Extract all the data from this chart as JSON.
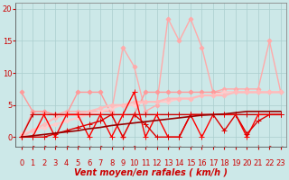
{
  "background_color": "#cce8e8",
  "grid_color": "#aacece",
  "xlabel": "Vent moyen/en rafales ( km/h )",
  "xlim": [
    -0.5,
    23.5
  ],
  "ylim": [
    -1.5,
    21
  ],
  "yticks": [
    0,
    5,
    10,
    15,
    20
  ],
  "xticks": [
    0,
    1,
    2,
    3,
    4,
    5,
    6,
    7,
    8,
    9,
    10,
    11,
    12,
    13,
    14,
    15,
    16,
    17,
    18,
    19,
    20,
    21,
    22,
    23
  ],
  "series": [
    {
      "y": [
        0.0,
        4.0,
        4.0,
        3.5,
        4.0,
        4.0,
        4.0,
        4.0,
        4.0,
        14.0,
        11.0,
        4.0,
        5.0,
        18.5,
        15.0,
        18.5,
        14.0,
        7.0,
        7.5,
        7.5,
        7.5,
        7.5,
        15.0,
        7.0
      ],
      "color": "#ffaaaa",
      "lw": 1.0,
      "marker": "D",
      "ms": 2.5
    },
    {
      "y": [
        7.0,
        4.0,
        4.0,
        3.5,
        3.5,
        7.0,
        7.0,
        7.0,
        3.5,
        0.0,
        3.5,
        7.0,
        7.0,
        7.0,
        7.0,
        7.0,
        7.0,
        7.0,
        7.0,
        7.0,
        7.0,
        7.0,
        7.0,
        7.0
      ],
      "color": "#ff9999",
      "lw": 1.0,
      "marker": "D",
      "ms": 2.5
    },
    {
      "y": [
        0.5,
        1.0,
        1.5,
        2.0,
        2.5,
        3.0,
        3.5,
        4.0,
        4.5,
        5.0,
        5.0,
        5.5,
        5.5,
        5.5,
        6.0,
        6.0,
        6.5,
        6.5,
        7.0,
        7.0,
        7.0,
        7.0,
        7.0,
        7.0
      ],
      "color": "#ffcccc",
      "lw": 1.5,
      "marker": "D",
      "ms": 2.5
    },
    {
      "y": [
        0.0,
        1.0,
        2.0,
        3.0,
        3.5,
        3.5,
        4.0,
        4.5,
        5.0,
        5.0,
        5.5,
        5.5,
        5.5,
        6.0,
        6.0,
        6.0,
        6.5,
        6.5,
        6.5,
        7.0,
        7.0,
        7.0,
        7.0,
        7.0
      ],
      "color": "#ffbbbb",
      "lw": 1.5,
      "marker": "D",
      "ms": 2.5
    },
    {
      "y": [
        0.0,
        3.5,
        3.5,
        3.5,
        3.5,
        3.5,
        3.5,
        3.5,
        3.5,
        3.5,
        3.5,
        3.5,
        3.5,
        3.5,
        3.5,
        3.5,
        3.5,
        3.5,
        3.5,
        3.5,
        3.5,
        3.5,
        3.5,
        3.5
      ],
      "color": "#cc0000",
      "lw": 1.0,
      "marker": "+",
      "ms": 4
    },
    {
      "y": [
        0.0,
        0.0,
        3.5,
        0.0,
        3.5,
        3.5,
        0.0,
        3.5,
        0.0,
        3.5,
        7.0,
        0.0,
        3.5,
        0.0,
        0.0,
        3.5,
        0.0,
        3.5,
        3.5,
        3.5,
        0.0,
        3.5,
        3.5,
        3.5
      ],
      "color": "#ff0000",
      "lw": 1.0,
      "marker": "+",
      "ms": 4
    },
    {
      "y": [
        0.0,
        0.0,
        0.0,
        0.5,
        1.0,
        1.5,
        2.0,
        2.5,
        3.5,
        0.0,
        3.5,
        2.0,
        0.0,
        0.0,
        0.0,
        3.5,
        3.5,
        3.5,
        1.0,
        3.5,
        0.5,
        2.5,
        3.5,
        3.5
      ],
      "color": "#dd0000",
      "lw": 1.0,
      "marker": "+",
      "ms": 4
    },
    {
      "y": [
        0.0,
        0.2,
        0.4,
        0.6,
        0.8,
        1.0,
        1.3,
        1.5,
        1.8,
        2.0,
        2.2,
        2.4,
        2.6,
        2.8,
        3.0,
        3.2,
        3.4,
        3.5,
        3.6,
        3.8,
        4.0,
        4.0,
        4.0,
        4.0
      ],
      "color": "#990000",
      "lw": 1.2,
      "marker": "None",
      "ms": 0
    }
  ],
  "wind_arrows": "↙↗↗↗↗↗↙↗↙↙↗↙↙↙↙↙↓↙↙→→↓↗↙",
  "xlabel_fontsize": 7,
  "xlabel_color": "#cc0000",
  "tick_color": "#cc0000",
  "tick_fontsize": 6,
  "arrow_fontsize": 5.5
}
